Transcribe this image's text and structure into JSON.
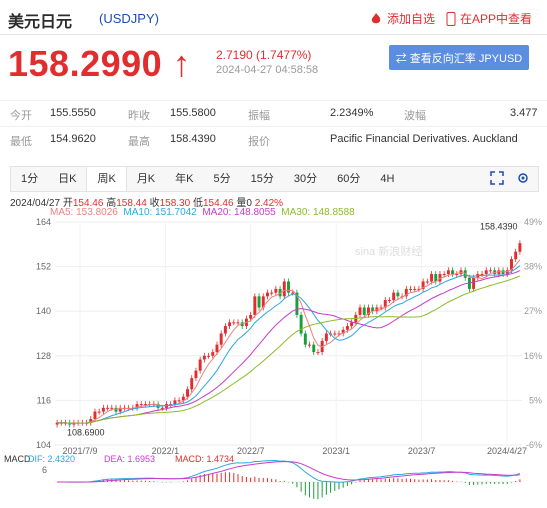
{
  "header": {
    "title": "美元日元",
    "code": "(USDJPY)",
    "add_watch_label": "添加自选",
    "app_label": "在APP中查看"
  },
  "quote": {
    "price": "158.2990",
    "arrow": "↑",
    "change": "2.7190 (1.7477%)",
    "timestamp": "2024-04-27 04:58:58",
    "reverse_label": "⇄ 查看反向汇率 JPYUSD"
  },
  "stats": [
    {
      "label": "今开",
      "value": "155.5550",
      "label2": "昨收",
      "value2": "155.5800",
      "label3": "振幅",
      "value3": "2.2349%",
      "label4": "波幅",
      "value4": "3.477"
    },
    {
      "label": "最低",
      "value": "154.9620",
      "label2": "最高",
      "value2": "158.4390",
      "label3": "报价",
      "value3": "Pacific Financial Derivatives. Auckland"
    }
  ],
  "tabs": [
    "1分",
    "日K",
    "周K",
    "月K",
    "年K",
    "5分",
    "15分",
    "30分",
    "60分",
    "4H"
  ],
  "ohlc_line": {
    "date": "2024/04/27",
    "open_label": "开",
    "open": "154.46",
    "high_label": "高",
    "high": "158.44",
    "close_label": "收",
    "close": "158.30",
    "low_label": "低",
    "low": "154.46",
    "vol_label": "量",
    "vol": "0",
    "pct": "2.42%"
  },
  "ma_line": {
    "ma5": "MA5: 153.8026",
    "ma10": "MA10: 151.7042",
    "ma20": "MA20: 148.8055",
    "ma30": "MA30: 148.8588"
  },
  "macd_line": {
    "label": "MACD",
    "dif": "DIF: 2.4320",
    "dea": "DEA: 1.6953",
    "macd": "MACD: 1.4734",
    "axis": "6"
  },
  "chart_data": {
    "type": "candlestick",
    "y_ticks": [
      "164",
      "152",
      "140",
      "128",
      "116",
      "104"
    ],
    "y_range": [
      104,
      164
    ],
    "right_ticks": [
      "49%",
      "38%",
      "27%",
      "16%",
      "5%",
      "-6%"
    ],
    "x_labels": [
      "2021/7/9",
      "2022/1",
      "2022/7",
      "2023/1",
      "2023/7",
      "2024/4/27"
    ],
    "annotations": {
      "high": "158.4390",
      "low": "108.6900"
    },
    "watermark": "sina 新浪财经",
    "closes": [
      110,
      110,
      110,
      109.5,
      110,
      110,
      110,
      110,
      111,
      113,
      113,
      114,
      114,
      114,
      113,
      114,
      114,
      114,
      114,
      115,
      115,
      115,
      115,
      115,
      114,
      114,
      115,
      115,
      116,
      116,
      117,
      119,
      122,
      124,
      127,
      128,
      128,
      129,
      131,
      134,
      136,
      137,
      137,
      137,
      136,
      138,
      139,
      144,
      141,
      144,
      145,
      145,
      146,
      144,
      148,
      145,
      145,
      139,
      134,
      131,
      131,
      129,
      129,
      132,
      134,
      134,
      134,
      134,
      135,
      136,
      137,
      139,
      141,
      139,
      141,
      140,
      141,
      141,
      143,
      143,
      145,
      144,
      144,
      146,
      146,
      146,
      146,
      148,
      148,
      150,
      148,
      150,
      150,
      151,
      150,
      150,
      151,
      149,
      146,
      149,
      150,
      150,
      151,
      151,
      150,
      151,
      150,
      151,
      154,
      156,
      158.3
    ],
    "colors": {
      "up": "#e12d2d",
      "down": "#1a9e3b",
      "ma5": "#f08080",
      "ma10": "#29a9e1",
      "ma20": "#c93bc9",
      "ma30": "#8dbb2a"
    }
  }
}
